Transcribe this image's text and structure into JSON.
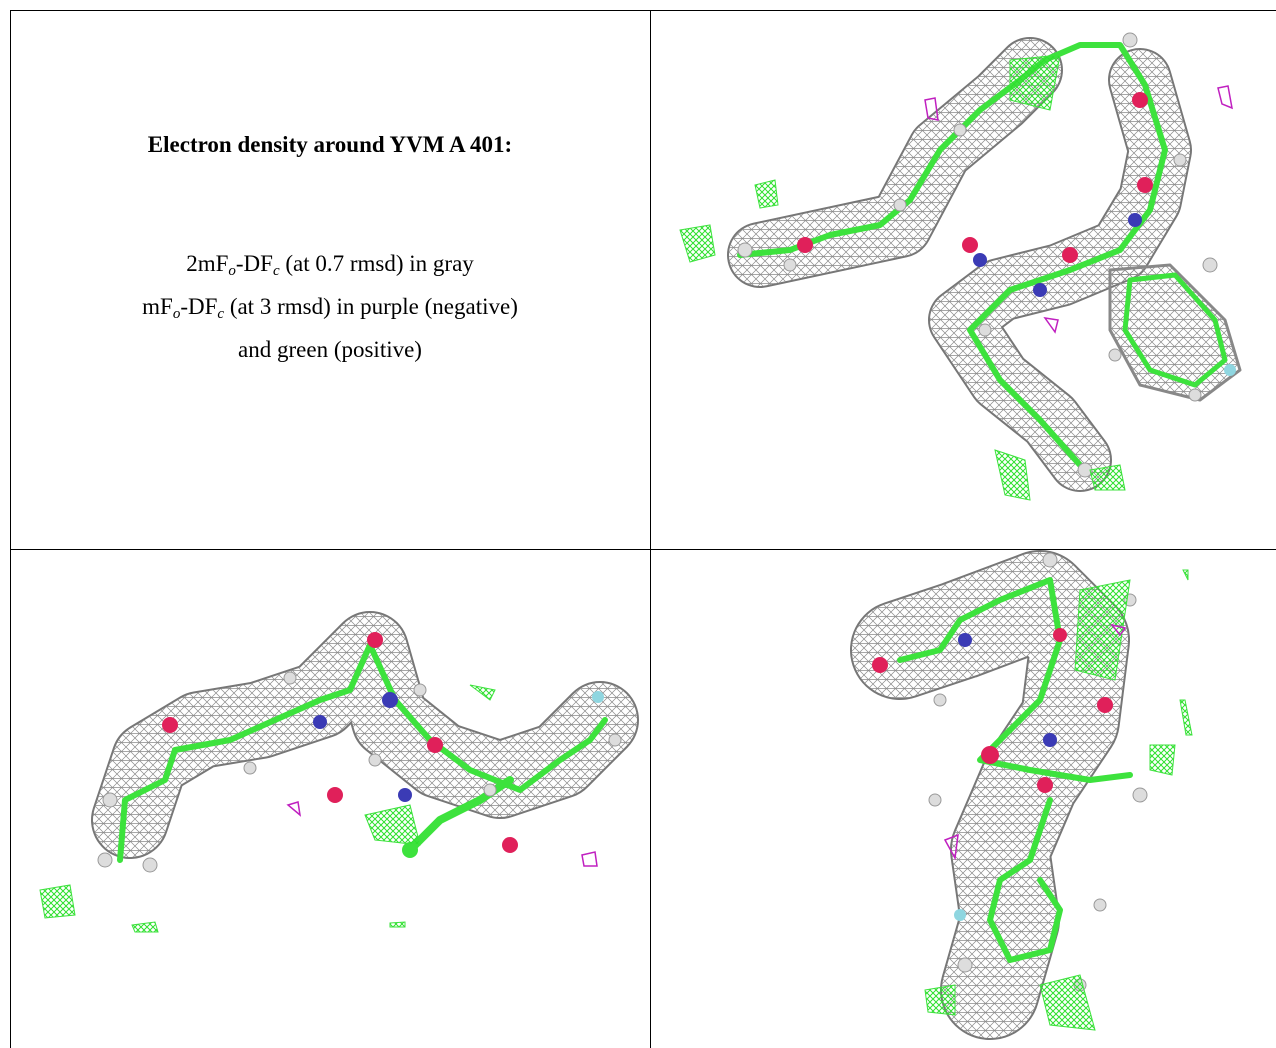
{
  "document": {
    "title": "Electron density around YVM A 401:",
    "legend": [
      [
        "2mF",
        "o",
        "-DF",
        "c",
        " (at 0.7 rmsd) in gray"
      ],
      [
        "mF",
        "o",
        "-DF",
        "c",
        " (at 3 rmsd) in purple (negative)"
      ],
      [
        "and green (positive)"
      ]
    ]
  }
}
